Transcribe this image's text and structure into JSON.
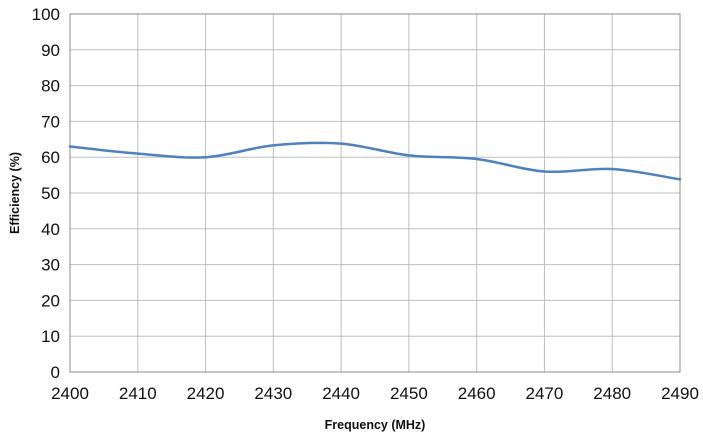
{
  "chart_data": {
    "type": "line",
    "title": "",
    "xlabel": "Frequency (MHz)",
    "ylabel": "Efficiency (%)",
    "xlim": [
      2400,
      2490
    ],
    "ylim": [
      0,
      100
    ],
    "x_ticks": [
      2400,
      2410,
      2420,
      2430,
      2440,
      2450,
      2460,
      2470,
      2480,
      2490
    ],
    "y_ticks": [
      0,
      10,
      20,
      30,
      40,
      50,
      60,
      70,
      80,
      90,
      100
    ],
    "grid": true,
    "legend": "none",
    "series": [
      {
        "color": "#4f81bd",
        "x": [
          2400,
          2410,
          2420,
          2430,
          2440,
          2450,
          2460,
          2470,
          2480,
          2490
        ],
        "y": [
          63,
          61,
          60,
          63.3,
          63.8,
          60.5,
          59.5,
          56,
          56.7,
          53.8
        ]
      }
    ]
  }
}
